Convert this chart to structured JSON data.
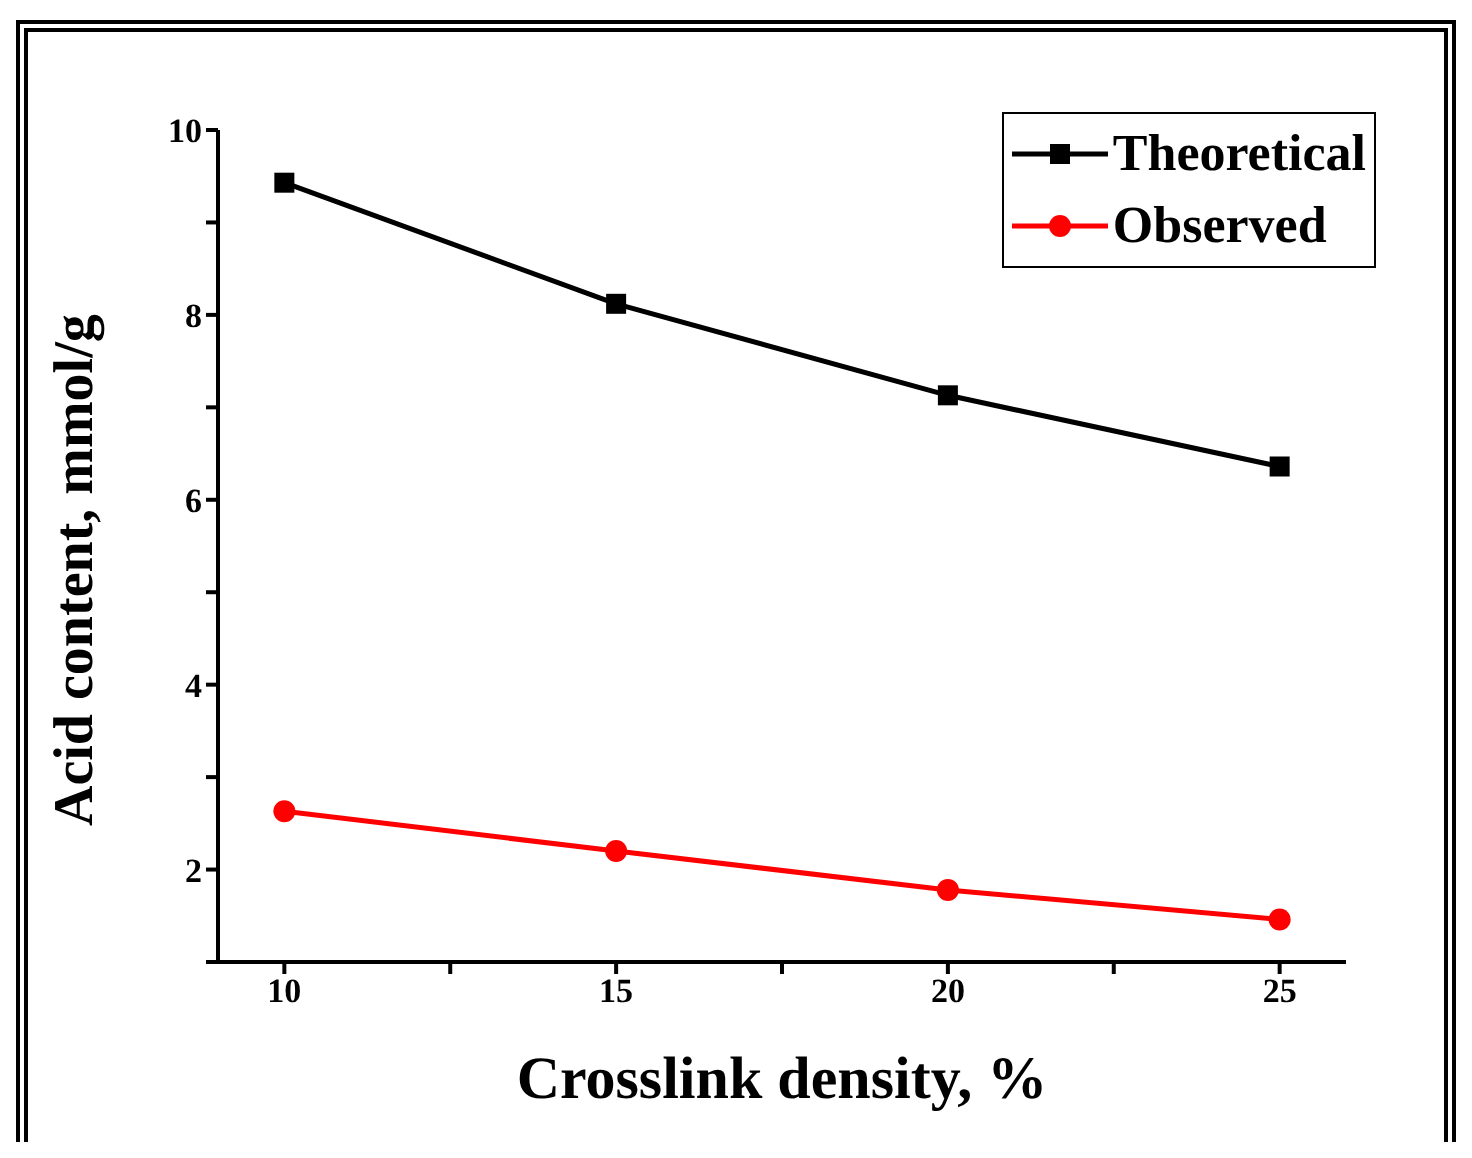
{
  "chart_data": {
    "type": "line",
    "xlabel": "Crosslink density, %",
    "ylabel": "Acid content, mmol/g",
    "x": [
      10,
      15,
      20,
      25
    ],
    "series": [
      {
        "name": "Theoretical",
        "color": "#000000",
        "marker": "square",
        "values": [
          9.43,
          8.12,
          7.13,
          6.36
        ]
      },
      {
        "name": "Observed",
        "color": "#ff0000",
        "marker": "circle",
        "values": [
          2.63,
          2.2,
          1.78,
          1.46
        ]
      }
    ],
    "xlim": [
      9,
      26
    ],
    "xticks": [
      10,
      {
        "value": 12.5,
        "label": null
      },
      15,
      {
        "value": 17.5,
        "label": null
      },
      20,
      {
        "value": 22.5,
        "label": null
      },
      25
    ],
    "ylim": [
      1,
      10
    ],
    "yticks": [
      {
        "value": 1,
        "label": null
      },
      2,
      {
        "value": 3,
        "label": null
      },
      4,
      {
        "value": 5,
        "label": null
      },
      6,
      {
        "value": 7,
        "label": null
      },
      8,
      {
        "value": 9,
        "label": null
      },
      10
    ],
    "grid": false,
    "legend": "top right",
    "line_style": "solid"
  }
}
